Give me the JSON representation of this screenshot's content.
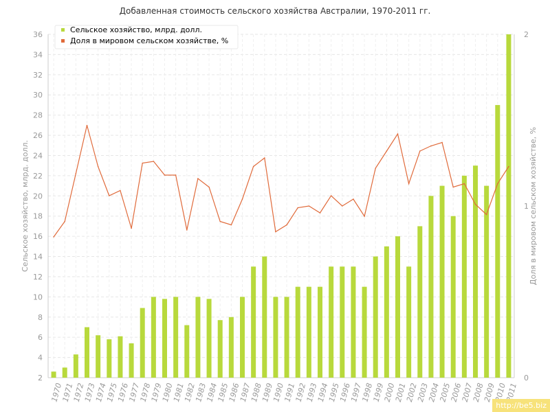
{
  "chart_data": {
    "type": "bar",
    "title": "Добавленная стоимость сельского хозяйства Австралии, 1970-2011 гг.",
    "ylabel_left": "Сельское хозяйство, млрд. долл.",
    "ylabel_right": "Доля в мировом сельском хозяйстве, %",
    "ylim_left": [
      2,
      36
    ],
    "yticks_left": [
      "2",
      "4",
      "6",
      "8",
      "10",
      "12",
      "14",
      "16",
      "18",
      "20",
      "22",
      "24",
      "26",
      "28",
      "30",
      "32",
      "34",
      "36"
    ],
    "ylim_right": [
      0,
      2
    ],
    "yticks_right": [
      "0",
      "1",
      "2"
    ],
    "grid": true,
    "legend_position": "top-left",
    "categories": [
      "1970",
      "1971",
      "1972",
      "1973",
      "1974",
      "1975",
      "1976",
      "1977",
      "1978",
      "1979",
      "1980",
      "1981",
      "1982",
      "1983",
      "1984",
      "1985",
      "1986",
      "1987",
      "1988",
      "1989",
      "1990",
      "1991",
      "1992",
      "1993",
      "1994",
      "1995",
      "1996",
      "1997",
      "1998",
      "1999",
      "2000",
      "2001",
      "2002",
      "2003",
      "2004",
      "2005",
      "2006",
      "2007",
      "2008",
      "2009",
      "2010",
      "2011"
    ],
    "series": [
      {
        "name": "Сельское хозяйство, млрд. долл.",
        "type": "bar",
        "axis": "left",
        "color": "#b8d93c",
        "values": [
          2.6,
          3.0,
          4.3,
          7.0,
          6.2,
          5.8,
          6.1,
          5.4,
          8.9,
          10.0,
          9.8,
          10.0,
          7.2,
          10.0,
          9.8,
          7.7,
          8.0,
          10.0,
          13.0,
          14.0,
          10.0,
          10.0,
          11.0,
          11.0,
          11.0,
          13.0,
          13.0,
          13.0,
          11.0,
          14.0,
          15.0,
          16.0,
          13.0,
          17.0,
          20.0,
          21.0,
          18.0,
          22.0,
          23.0,
          21.0,
          29.0,
          36.0
        ]
      },
      {
        "name": "Доля в мировом сельском хозяйстве, %",
        "type": "line",
        "axis": "right",
        "color": "#e06a3a",
        "values": [
          0.82,
          0.91,
          1.19,
          1.47,
          1.23,
          1.06,
          1.09,
          0.87,
          1.25,
          1.26,
          1.18,
          1.18,
          0.86,
          1.16,
          1.11,
          0.91,
          0.89,
          1.04,
          1.23,
          1.28,
          0.85,
          0.89,
          0.99,
          1.0,
          0.96,
          1.06,
          1.0,
          1.04,
          0.94,
          1.22,
          1.32,
          1.42,
          1.13,
          1.32,
          1.35,
          1.37,
          1.11,
          1.13,
          1.01,
          0.95,
          1.13,
          1.23
        ]
      }
    ]
  },
  "watermark": "http://be5.biz"
}
